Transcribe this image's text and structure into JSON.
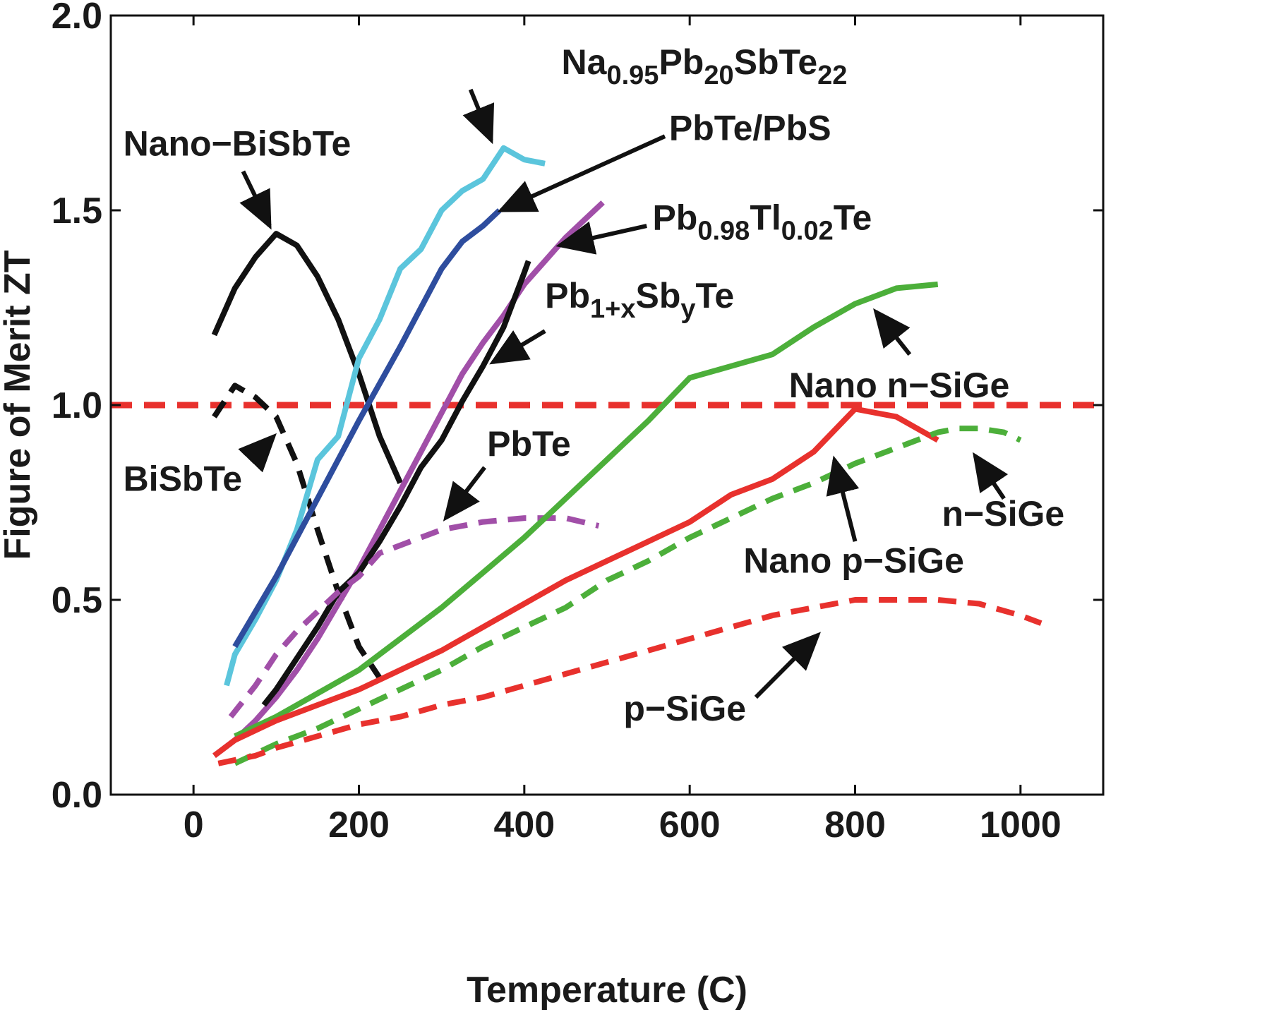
{
  "chart_data": {
    "type": "line",
    "title": "",
    "xlabel": "Temperature (C)",
    "ylabel": "Figure of Merit ZT",
    "xlim": [
      -100,
      1100
    ],
    "ylim": [
      0,
      2
    ],
    "xticks": [
      0,
      200,
      400,
      600,
      800,
      1000
    ],
    "xtick_labels": [
      "0",
      "200",
      "400",
      "600",
      "800",
      "1000"
    ],
    "yticks": [
      0,
      0.5,
      1,
      1.5,
      2
    ],
    "ytick_labels": [
      "0.0",
      "0.5",
      "1.0",
      "1.5",
      "2.0"
    ],
    "grid": false,
    "legend": "none",
    "reference_line": {
      "y": 1.0,
      "color": "#e8312d",
      "style": "dashed"
    },
    "series": [
      {
        "key": "nano_bisbte",
        "color": "#111111",
        "style": "solid",
        "x": [
          25,
          50,
          75,
          100,
          125,
          150,
          175,
          200,
          225,
          250
        ],
        "y": [
          1.18,
          1.3,
          1.38,
          1.44,
          1.41,
          1.33,
          1.22,
          1.08,
          0.92,
          0.8
        ]
      },
      {
        "key": "bisbte",
        "color": "#111111",
        "style": "dashed",
        "x": [
          25,
          50,
          75,
          100,
          125,
          150,
          175,
          200,
          225
        ],
        "y": [
          0.97,
          1.05,
          1.02,
          0.97,
          0.85,
          0.68,
          0.52,
          0.38,
          0.3
        ]
      },
      {
        "key": "na_pb_sb_te",
        "color": "#5bc5dc",
        "style": "solid",
        "x": [
          40,
          50,
          75,
          100,
          125,
          150,
          175,
          200,
          225,
          250,
          275,
          300,
          325,
          350,
          375,
          400,
          425
        ],
        "y": [
          0.28,
          0.36,
          0.45,
          0.55,
          0.68,
          0.86,
          0.92,
          1.12,
          1.22,
          1.35,
          1.4,
          1.5,
          1.55,
          1.58,
          1.66,
          1.63,
          1.62
        ]
      },
      {
        "key": "pbte_pbs",
        "color": "#2e4d9e",
        "style": "solid",
        "x": [
          50,
          100,
          150,
          200,
          250,
          300,
          325,
          350,
          370
        ],
        "y": [
          0.38,
          0.56,
          0.76,
          0.96,
          1.15,
          1.35,
          1.42,
          1.46,
          1.5
        ]
      },
      {
        "key": "pb_tl_te",
        "color": "#a14fa8",
        "style": "solid",
        "x": [
          25,
          50,
          75,
          100,
          125,
          150,
          175,
          200,
          225,
          250,
          275,
          300,
          325,
          350,
          375,
          400,
          425,
          450,
          475,
          495
        ],
        "y": [
          0.1,
          0.14,
          0.19,
          0.25,
          0.32,
          0.4,
          0.49,
          0.58,
          0.68,
          0.78,
          0.88,
          0.98,
          1.08,
          1.16,
          1.23,
          1.31,
          1.37,
          1.43,
          1.48,
          1.52
        ]
      },
      {
        "key": "pb_sb_te",
        "color": "#111111",
        "style": "solid",
        "x": [
          85,
          100,
          125,
          150,
          175,
          200,
          225,
          250,
          275,
          300,
          325,
          350,
          375,
          400,
          405
        ],
        "y": [
          0.23,
          0.27,
          0.35,
          0.43,
          0.52,
          0.57,
          0.65,
          0.74,
          0.84,
          0.91,
          1.01,
          1.1,
          1.2,
          1.34,
          1.37
        ]
      },
      {
        "key": "pbte",
        "color": "#a14fa8",
        "style": "dashed",
        "x": [
          45,
          75,
          100,
          125,
          150,
          175,
          200,
          225,
          250,
          300,
          350,
          400,
          450,
          490
        ],
        "y": [
          0.2,
          0.28,
          0.36,
          0.42,
          0.47,
          0.52,
          0.56,
          0.62,
          0.64,
          0.68,
          0.7,
          0.71,
          0.71,
          0.69
        ]
      },
      {
        "key": "nano_n_sige",
        "color": "#4caf3a",
        "style": "solid",
        "x": [
          50,
          100,
          150,
          200,
          250,
          300,
          350,
          400,
          450,
          500,
          550,
          600,
          650,
          700,
          750,
          800,
          850,
          900
        ],
        "y": [
          0.15,
          0.2,
          0.26,
          0.32,
          0.4,
          0.48,
          0.57,
          0.66,
          0.76,
          0.86,
          0.96,
          1.07,
          1.1,
          1.13,
          1.2,
          1.26,
          1.3,
          1.31
        ]
      },
      {
        "key": "nano_p_sige",
        "color": "#e8312d",
        "style": "solid",
        "x": [
          25,
          50,
          100,
          150,
          200,
          250,
          300,
          350,
          400,
          450,
          500,
          550,
          600,
          650,
          700,
          750,
          800,
          850,
          900
        ],
        "y": [
          0.1,
          0.14,
          0.19,
          0.23,
          0.27,
          0.32,
          0.37,
          0.43,
          0.49,
          0.55,
          0.6,
          0.65,
          0.7,
          0.77,
          0.81,
          0.88,
          0.99,
          0.97,
          0.91
        ]
      },
      {
        "key": "n_sige",
        "color": "#4caf3a",
        "style": "dashed",
        "x": [
          50,
          100,
          150,
          200,
          250,
          300,
          350,
          400,
          450,
          500,
          550,
          600,
          650,
          700,
          750,
          800,
          850,
          900,
          925,
          950,
          980,
          1000
        ],
        "y": [
          0.08,
          0.13,
          0.17,
          0.22,
          0.27,
          0.32,
          0.38,
          0.43,
          0.48,
          0.55,
          0.6,
          0.66,
          0.71,
          0.76,
          0.8,
          0.85,
          0.89,
          0.93,
          0.94,
          0.94,
          0.93,
          0.91
        ]
      },
      {
        "key": "p_sige",
        "color": "#e8312d",
        "style": "dashed",
        "x": [
          30,
          75,
          100,
          150,
          200,
          250,
          300,
          350,
          400,
          450,
          500,
          550,
          600,
          650,
          700,
          750,
          800,
          850,
          900,
          950,
          1000,
          1025
        ],
        "y": [
          0.08,
          0.1,
          0.12,
          0.15,
          0.18,
          0.2,
          0.23,
          0.25,
          0.28,
          0.31,
          0.34,
          0.37,
          0.4,
          0.43,
          0.46,
          0.48,
          0.5,
          0.5,
          0.5,
          0.49,
          0.46,
          0.44
        ]
      }
    ],
    "annotations": [
      {
        "key": "ann_na",
        "parts": [
          [
            "Na",
            ""
          ],
          [
            "0.95",
            "sub"
          ],
          [
            "Pb",
            ""
          ],
          [
            "20",
            "sub"
          ],
          [
            "SbTe",
            ""
          ],
          [
            "22",
            "sub"
          ]
        ],
        "text_at": [
          445,
          1.85
        ],
        "arrow_from": [
          335,
          1.81
        ],
        "arrow_to": [
          360,
          1.68
        ]
      },
      {
        "key": "ann_pbte_pbs",
        "parts": [
          [
            "PbTe/PbS",
            ""
          ]
        ],
        "text_at": [
          575,
          1.68
        ],
        "arrow_from": [
          570,
          1.69
        ],
        "arrow_to": [
          372,
          1.5
        ]
      },
      {
        "key": "ann_nano_bisbte",
        "parts": [
          [
            "Nano−BiSbTe",
            ""
          ]
        ],
        "text_at": [
          -85,
          1.64
        ],
        "arrow_from": [
          60,
          1.6
        ],
        "arrow_to": [
          92,
          1.46
        ]
      },
      {
        "key": "ann_pb_tl_te",
        "parts": [
          [
            "Pb",
            ""
          ],
          [
            "0.98",
            "sub"
          ],
          [
            "Tl",
            ""
          ],
          [
            "0.02",
            "sub"
          ],
          [
            "Te",
            ""
          ]
        ],
        "text_at": [
          555,
          1.45
        ],
        "arrow_from": [
          548,
          1.46
        ],
        "arrow_to": [
          443,
          1.41
        ]
      },
      {
        "key": "ann_pb_sb_te",
        "parts": [
          [
            "Pb",
            ""
          ],
          [
            "1+x",
            "sub"
          ],
          [
            "Sb",
            ""
          ],
          [
            "y",
            "sub"
          ],
          [
            "Te",
            ""
          ]
        ],
        "text_at": [
          425,
          1.25
        ],
        "arrow_from": [
          425,
          1.19
        ],
        "arrow_to": [
          362,
          1.11
        ]
      },
      {
        "key": "ann_nano_n_sige",
        "parts": [
          [
            "Nano n−SiGe",
            ""
          ]
        ],
        "text_at": [
          720,
          1.02
        ],
        "arrow_from": [
          866,
          1.13
        ],
        "arrow_to": [
          825,
          1.24
        ]
      },
      {
        "key": "ann_bisbte",
        "parts": [
          [
            "BiSbTe",
            ""
          ]
        ],
        "text_at": [
          -85,
          0.78
        ],
        "arrow_from": [
          70,
          0.86
        ],
        "arrow_to": [
          97,
          0.92
        ]
      },
      {
        "key": "ann_pbte",
        "parts": [
          [
            "PbTe",
            ""
          ]
        ],
        "text_at": [
          355,
          0.87
        ],
        "arrow_from": [
          352,
          0.84
        ],
        "arrow_to": [
          305,
          0.71
        ]
      },
      {
        "key": "ann_n_sige",
        "parts": [
          [
            "n−SiGe",
            ""
          ]
        ],
        "text_at": [
          905,
          0.69
        ],
        "arrow_from": [
          980,
          0.76
        ],
        "arrow_to": [
          945,
          0.87
        ]
      },
      {
        "key": "ann_nano_p_sige",
        "parts": [
          [
            "Nano p−SiGe",
            ""
          ]
        ],
        "text_at": [
          665,
          0.57
        ],
        "arrow_from": [
          800,
          0.65
        ],
        "arrow_to": [
          775,
          0.86
        ]
      },
      {
        "key": "ann_p_sige",
        "parts": [
          [
            "p−SiGe",
            ""
          ]
        ],
        "text_at": [
          520,
          0.19
        ],
        "arrow_from": [
          680,
          0.25
        ],
        "arrow_to": [
          755,
          0.41
        ]
      }
    ]
  }
}
